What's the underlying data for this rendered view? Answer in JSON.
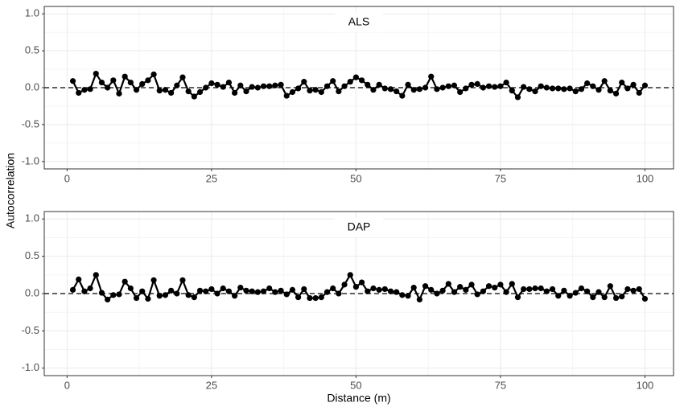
{
  "y_label": "Autocorrelation",
  "x_label": "Distance (m)",
  "chart_data": [
    {
      "type": "line",
      "title": "ALS",
      "x": [
        1,
        2,
        3,
        4,
        5,
        6,
        7,
        8,
        9,
        10,
        11,
        12,
        13,
        14,
        15,
        16,
        17,
        18,
        19,
        20,
        21,
        22,
        23,
        24,
        25,
        26,
        27,
        28,
        29,
        30,
        31,
        32,
        33,
        34,
        35,
        36,
        37,
        38,
        39,
        40,
        41,
        42,
        43,
        44,
        45,
        46,
        47,
        48,
        49,
        50,
        51,
        52,
        53,
        54,
        55,
        56,
        57,
        58,
        59,
        60,
        61,
        62,
        63,
        64,
        65,
        66,
        67,
        68,
        69,
        70,
        71,
        72,
        73,
        74,
        75,
        76,
        77,
        78,
        79,
        80,
        81,
        82,
        83,
        84,
        85,
        86,
        87,
        88,
        89,
        90,
        91,
        92,
        93,
        94,
        95,
        96,
        97,
        98,
        99,
        100
      ],
      "series": [
        {
          "color": "#000000",
          "values": [
            0.09,
            -0.07,
            -0.03,
            -0.02,
            0.19,
            0.07,
            0.0,
            0.1,
            -0.08,
            0.15,
            0.07,
            -0.03,
            0.05,
            0.1,
            0.18,
            -0.04,
            -0.03,
            -0.07,
            0.03,
            0.14,
            -0.05,
            -0.12,
            -0.06,
            0.0,
            0.06,
            0.04,
            0.01,
            0.07,
            -0.07,
            0.03,
            -0.05,
            0.01,
            0.0,
            0.02,
            0.02,
            0.03,
            0.04,
            -0.11,
            -0.06,
            -0.01,
            0.08,
            -0.04,
            -0.03,
            -0.06,
            0.02,
            0.09,
            -0.05,
            0.02,
            0.08,
            0.14,
            0.1,
            0.04,
            -0.03,
            0.04,
            -0.01,
            -0.02,
            -0.05,
            -0.11,
            0.04,
            -0.03,
            -0.02,
            0.0,
            0.15,
            -0.02,
            0.0,
            0.02,
            0.03,
            -0.06,
            -0.01,
            0.04,
            0.05,
            0.0,
            0.02,
            0.01,
            0.02,
            0.07,
            -0.04,
            -0.13,
            0.01,
            -0.02,
            -0.05,
            0.02,
            0.0,
            -0.01,
            -0.01,
            -0.02,
            -0.01,
            -0.05,
            -0.02,
            0.06,
            0.02,
            -0.03,
            0.09,
            -0.04,
            -0.08,
            0.07,
            -0.01,
            0.04,
            -0.07,
            0.03
          ]
        }
      ],
      "hline": 0,
      "xlim": [
        -3.95,
        104.95
      ],
      "xticks": [
        0,
        25,
        50,
        75,
        100
      ],
      "ylim": [
        -1.1,
        1.1
      ],
      "yticks": [
        {
          "value": 1,
          "label": "1.0"
        },
        {
          "value": 0.5,
          "label": "0.5"
        },
        {
          "value": 0,
          "label": "0.0"
        },
        {
          "value": -0.5,
          "label": "-0.5"
        },
        {
          "value": -1,
          "label": "-1.0"
        }
      ],
      "grid": true
    },
    {
      "type": "line",
      "title": "DAP",
      "x": [
        1,
        2,
        3,
        4,
        5,
        6,
        7,
        8,
        9,
        10,
        11,
        12,
        13,
        14,
        15,
        16,
        17,
        18,
        19,
        20,
        21,
        22,
        23,
        24,
        25,
        26,
        27,
        28,
        29,
        30,
        31,
        32,
        33,
        34,
        35,
        36,
        37,
        38,
        39,
        40,
        41,
        42,
        43,
        44,
        45,
        46,
        47,
        48,
        49,
        50,
        51,
        52,
        53,
        54,
        55,
        56,
        57,
        58,
        59,
        60,
        61,
        62,
        63,
        64,
        65,
        66,
        67,
        68,
        69,
        70,
        71,
        72,
        73,
        74,
        75,
        76,
        77,
        78,
        79,
        80,
        81,
        82,
        83,
        84,
        85,
        86,
        87,
        88,
        89,
        90,
        91,
        92,
        93,
        94,
        95,
        96,
        97,
        98,
        99,
        100
      ],
      "series": [
        {
          "color": "#000000",
          "values": [
            0.05,
            0.19,
            0.03,
            0.07,
            0.25,
            0.01,
            -0.08,
            -0.02,
            -0.01,
            0.16,
            0.07,
            -0.06,
            0.03,
            -0.07,
            0.18,
            -0.03,
            -0.02,
            0.04,
            0.0,
            0.18,
            -0.02,
            -0.05,
            0.04,
            0.03,
            0.06,
            0.0,
            0.07,
            0.03,
            -0.03,
            0.08,
            0.04,
            0.03,
            0.02,
            0.03,
            0.07,
            0.02,
            0.04,
            -0.01,
            0.05,
            -0.05,
            0.06,
            -0.06,
            -0.06,
            -0.05,
            0.02,
            0.07,
            0.0,
            0.12,
            0.25,
            0.09,
            0.15,
            0.03,
            0.07,
            0.05,
            0.06,
            0.03,
            0.02,
            -0.02,
            -0.03,
            0.08,
            -0.08,
            0.1,
            0.05,
            0.0,
            0.04,
            0.13,
            0.02,
            0.09,
            0.05,
            0.12,
            -0.01,
            0.03,
            0.1,
            0.08,
            0.12,
            0.02,
            0.13,
            -0.05,
            0.06,
            0.06,
            0.07,
            0.07,
            0.03,
            0.06,
            -0.03,
            0.04,
            -0.03,
            0.01,
            0.07,
            0.03,
            -0.05,
            0.02,
            -0.05,
            0.1,
            -0.06,
            -0.04,
            0.06,
            0.04,
            0.06,
            -0.07
          ]
        }
      ],
      "hline": 0,
      "xlim": [
        -3.95,
        104.95
      ],
      "xticks": [
        0,
        25,
        50,
        75,
        100
      ],
      "ylim": [
        -1.1,
        1.1
      ],
      "yticks": [
        {
          "value": 1,
          "label": "1.0"
        },
        {
          "value": 0.5,
          "label": "0.5"
        },
        {
          "value": 0,
          "label": "0.0"
        },
        {
          "value": -0.5,
          "label": "-0.5"
        },
        {
          "value": -1,
          "label": "-1.0"
        }
      ],
      "grid": true
    }
  ]
}
